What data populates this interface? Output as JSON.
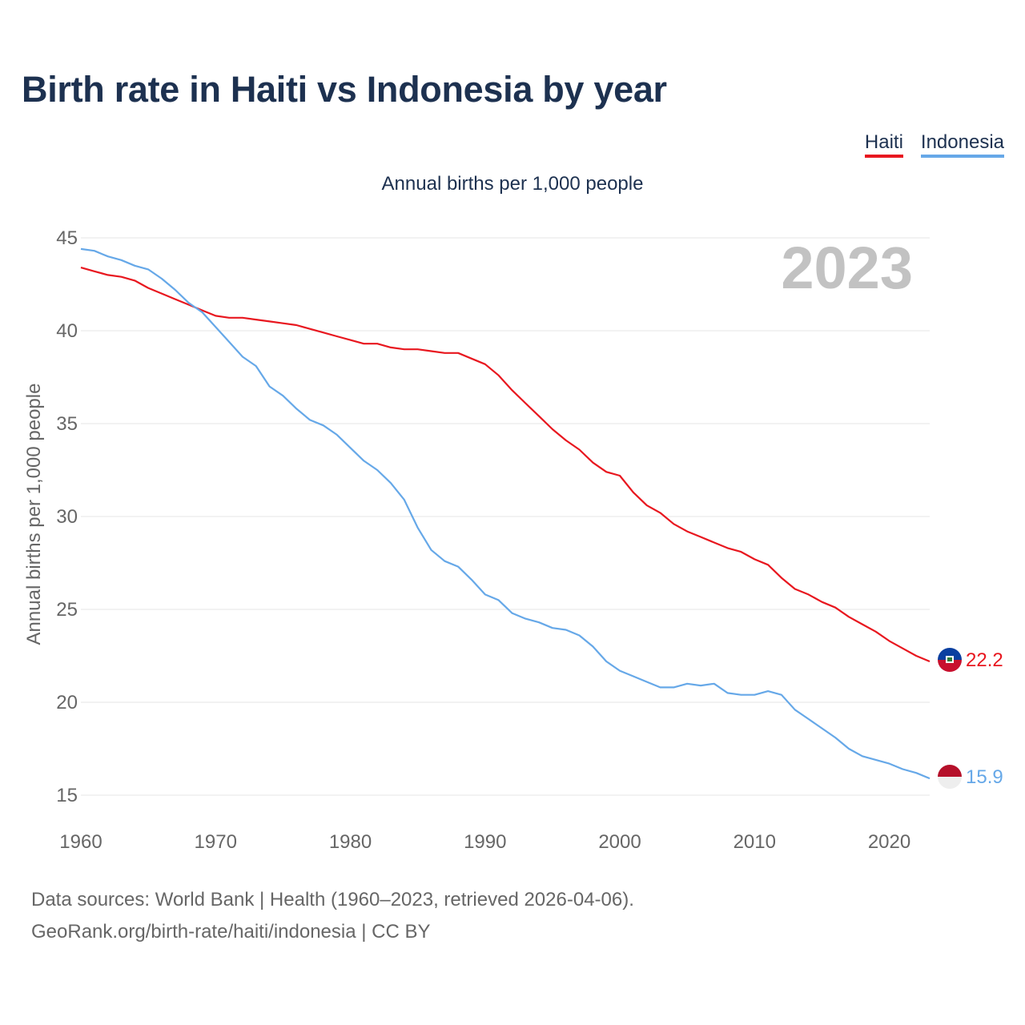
{
  "chart_data": {
    "type": "line",
    "title": "Birth rate in Haiti vs Indonesia by year",
    "subtitle": "Annual births per 1,000 people",
    "ylabel": "Annual births per 1,000 people",
    "xlabel": "",
    "year_label": "2023",
    "xlim": [
      1960,
      2023
    ],
    "ylim": [
      15,
      45
    ],
    "x_ticks": [
      1960,
      1970,
      1980,
      1990,
      2000,
      2010,
      2020
    ],
    "y_ticks": [
      15,
      20,
      25,
      30,
      35,
      40,
      45
    ],
    "legend_position": "top-right",
    "series": [
      {
        "name": "Haiti",
        "color": "#e8171f",
        "flag": "haiti-flag",
        "end_label": "22.2",
        "x": [
          1960,
          1961,
          1962,
          1963,
          1964,
          1965,
          1966,
          1967,
          1968,
          1969,
          1970,
          1971,
          1972,
          1973,
          1974,
          1975,
          1976,
          1977,
          1978,
          1979,
          1980,
          1981,
          1982,
          1983,
          1984,
          1985,
          1986,
          1987,
          1988,
          1989,
          1990,
          1991,
          1992,
          1993,
          1994,
          1995,
          1996,
          1997,
          1998,
          1999,
          2000,
          2001,
          2002,
          2003,
          2004,
          2005,
          2006,
          2007,
          2008,
          2009,
          2010,
          2011,
          2012,
          2013,
          2014,
          2015,
          2016,
          2017,
          2018,
          2019,
          2020,
          2021,
          2022,
          2023
        ],
        "values": [
          43.4,
          43.2,
          43.0,
          42.9,
          42.7,
          42.3,
          42.0,
          41.7,
          41.4,
          41.1,
          40.8,
          40.7,
          40.7,
          40.6,
          40.5,
          40.4,
          40.3,
          40.1,
          39.9,
          39.7,
          39.5,
          39.3,
          39.3,
          39.1,
          39.0,
          39.0,
          38.9,
          38.8,
          38.8,
          38.5,
          38.2,
          37.6,
          36.8,
          36.1,
          35.4,
          34.7,
          34.1,
          33.6,
          32.9,
          32.4,
          32.2,
          31.3,
          30.6,
          30.2,
          29.6,
          29.2,
          28.9,
          28.6,
          28.3,
          28.1,
          27.7,
          27.4,
          26.7,
          26.1,
          25.8,
          25.4,
          25.1,
          24.6,
          24.2,
          23.8,
          23.3,
          22.9,
          22.5,
          22.2
        ]
      },
      {
        "name": "Indonesia",
        "color": "#66a8e8",
        "flag": "indonesia-flag",
        "end_label": "15.9",
        "x": [
          1960,
          1961,
          1962,
          1963,
          1964,
          1965,
          1966,
          1967,
          1968,
          1969,
          1970,
          1971,
          1972,
          1973,
          1974,
          1975,
          1976,
          1977,
          1978,
          1979,
          1980,
          1981,
          1982,
          1983,
          1984,
          1985,
          1986,
          1987,
          1988,
          1989,
          1990,
          1991,
          1992,
          1993,
          1994,
          1995,
          1996,
          1997,
          1998,
          1999,
          2000,
          2001,
          2002,
          2003,
          2004,
          2005,
          2006,
          2007,
          2008,
          2009,
          2010,
          2011,
          2012,
          2013,
          2014,
          2015,
          2016,
          2017,
          2018,
          2019,
          2020,
          2021,
          2022,
          2023
        ],
        "values": [
          44.4,
          44.3,
          44.0,
          43.8,
          43.5,
          43.3,
          42.8,
          42.2,
          41.5,
          41.0,
          40.2,
          39.4,
          38.6,
          38.1,
          37.0,
          36.5,
          35.8,
          35.2,
          34.9,
          34.4,
          33.7,
          33.0,
          32.5,
          31.8,
          30.9,
          29.4,
          28.2,
          27.6,
          27.3,
          26.6,
          25.8,
          25.5,
          24.8,
          24.5,
          24.3,
          24.0,
          23.9,
          23.6,
          23.0,
          22.2,
          21.7,
          21.4,
          21.1,
          20.8,
          20.8,
          21.0,
          20.9,
          21.0,
          20.5,
          20.4,
          20.4,
          20.6,
          20.4,
          19.6,
          19.1,
          18.6,
          18.1,
          17.5,
          17.1,
          16.9,
          16.7,
          16.4,
          16.2,
          15.9
        ]
      }
    ]
  },
  "footer": {
    "line1": "Data sources: World Bank | Health (1960–2023, retrieved 2026-04-06).",
    "line2": "GeoRank.org/birth-rate/haiti/indonesia | CC BY"
  }
}
